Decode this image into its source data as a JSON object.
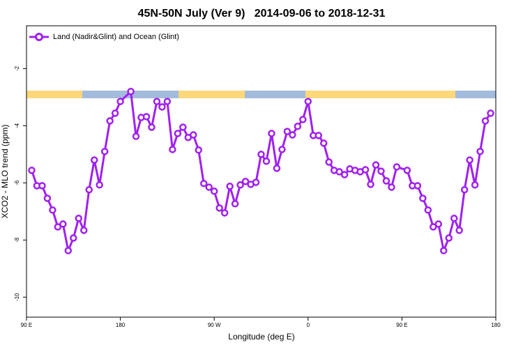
{
  "chart_data": {
    "type": "line",
    "title": "45N-50N July (Ver 9)   2014-09-06 to 2018-12-31",
    "xlabel": "Longitude (deg E)",
    "ylabel": "XCO2 - MLO trend (ppm)",
    "legend": "top-left",
    "xlim": [
      90,
      540
    ],
    "ylim": [
      -10.7,
      -0.5
    ],
    "xticks": [
      {
        "value": 90,
        "label": "90 E"
      },
      180,
      {
        "value": 270,
        "label": "90 W"
      },
      {
        "value": 360,
        "label": "0"
      },
      {
        "value": 450,
        "label": "90 E"
      },
      {
        "value": 540,
        "label": "180"
      }
    ],
    "yticks": [
      -2,
      -4,
      -6,
      -8,
      -10
    ],
    "x": [
      95,
      100,
      105,
      110,
      115,
      120,
      125,
      130,
      135,
      140,
      145,
      150,
      155,
      160,
      165,
      170,
      175,
      180,
      190,
      195,
      200,
      205,
      210,
      215,
      220,
      225,
      230,
      235,
      240,
      245,
      250,
      255,
      260,
      265,
      270,
      275,
      280,
      285,
      290,
      295,
      300,
      305,
      310,
      315,
      320,
      325,
      330,
      335,
      340,
      345,
      350,
      355,
      360,
      365,
      370,
      375,
      380,
      385,
      390,
      395,
      400,
      405,
      410,
      415,
      420,
      425,
      430,
      435,
      440,
      445,
      455,
      460,
      465,
      470,
      475,
      480,
      485,
      490,
      495,
      500,
      505,
      510,
      515,
      520,
      525,
      530,
      535
    ],
    "series": [
      {
        "name": "Land (Nadir&Glint) and Ocean (Glint)",
        "color": "#a020f0",
        "values": [
          -5.56,
          -6.1,
          -6.1,
          -6.54,
          -6.95,
          -7.54,
          -7.44,
          -8.37,
          -7.93,
          -7.24,
          -7.66,
          -6.24,
          -5.2,
          -6.07,
          -4.9,
          -3.83,
          -3.56,
          -3.15,
          -2.8,
          -4.37,
          -3.71,
          -3.68,
          -4.05,
          -3.15,
          -3.34,
          -3.15,
          -4.83,
          -4.27,
          -4.05,
          -4.41,
          -4.32,
          -4.85,
          -6.02,
          -6.15,
          -6.29,
          -6.88,
          -7.05,
          -6.12,
          -6.73,
          -6.07,
          -5.95,
          -6.05,
          -5.98,
          -5.0,
          -5.24,
          -4.27,
          -5.49,
          -4.83,
          -4.2,
          -4.32,
          -4.02,
          -3.78,
          -3.15,
          -4.34,
          -4.34,
          -4.61,
          -5.27,
          -5.56,
          -5.61,
          -5.71,
          -5.51,
          -5.56,
          -5.61,
          -5.54,
          -6.05,
          -5.37,
          -5.59,
          -5.93,
          -6.15,
          -5.44,
          -5.56,
          -6.1,
          -6.1,
          -6.54,
          -6.95,
          -7.54,
          -7.44,
          -8.37,
          -7.93,
          -7.24,
          -7.66,
          -6.24,
          -5.2,
          -6.07,
          -4.9,
          -3.83,
          -3.56
        ]
      }
    ]
  }
}
